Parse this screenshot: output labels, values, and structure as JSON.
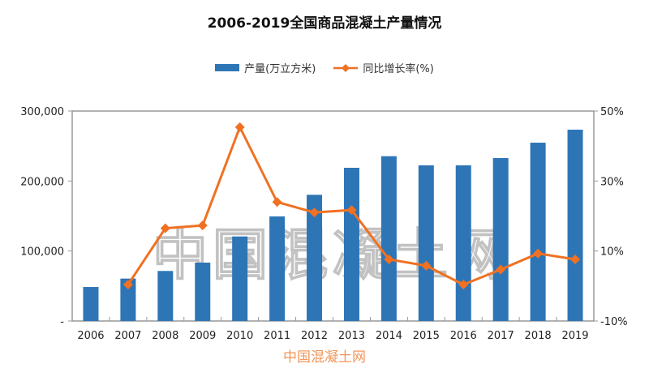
{
  "chart_data": {
    "type": "bar+line",
    "title": "2006-2019全国商品混凝土产量情况",
    "categories": [
      "2006",
      "2007",
      "2008",
      "2009",
      "2010",
      "2011",
      "2012",
      "2013",
      "2014",
      "2015",
      "2016",
      "2017",
      "2018",
      "2019"
    ],
    "series": [
      {
        "name": "产量(万立方米)",
        "type": "bar",
        "axis": "left",
        "color": "#2e75b6",
        "values": [
          48600,
          60600,
          71500,
          83400,
          120800,
          149400,
          180300,
          218900,
          235500,
          222400,
          222400,
          232800,
          254800,
          273400
        ]
      },
      {
        "name": "同比增长率(%)",
        "type": "line",
        "axis": "right",
        "color": "#f07122",
        "marker": "diamond",
        "values": [
          null,
          0.4,
          16.5,
          17.3,
          45.4,
          24.0,
          21.0,
          21.7,
          7.6,
          5.8,
          0.4,
          4.7,
          9.3,
          7.6
        ]
      }
    ],
    "left_axis": {
      "ylim": [
        0,
        300000
      ],
      "tick_labels": [
        "-",
        "100,000",
        "200,000",
        "300,000"
      ]
    },
    "right_axis": {
      "ylim": [
        -10,
        50
      ],
      "tick_labels": [
        "-10%",
        "10%",
        "30%",
        "50%"
      ]
    },
    "grid": false,
    "legend": "top"
  },
  "watermarks": {
    "large": "中国混凝土网",
    "small": "中国混凝土网"
  }
}
